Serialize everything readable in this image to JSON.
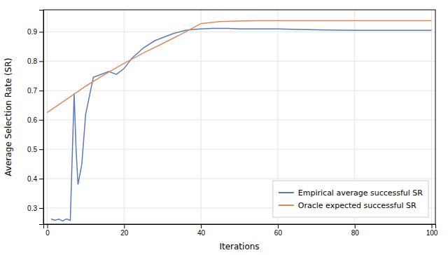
{
  "chart_data": {
    "type": "line",
    "xlabel": "Iterations",
    "ylabel": "Average Selection Rate (SR)",
    "xlim": [
      -1,
      101
    ],
    "ylim": [
      0.245,
      0.975
    ],
    "xticks": [
      0,
      20,
      40,
      60,
      80,
      100
    ],
    "yticks": [
      0.3,
      0.4,
      0.5,
      0.6,
      0.7,
      0.8,
      0.9
    ],
    "grid": true,
    "legend": "lower right",
    "series": [
      {
        "name": "Empirical average successful SR",
        "color": "#5b7ab8",
        "x": [
          1,
          2,
          3,
          4,
          5,
          6,
          7,
          7.5,
          8,
          9,
          10,
          12,
          14,
          16,
          18,
          20,
          22,
          25,
          28,
          30,
          33,
          36,
          38,
          40,
          43,
          47,
          50,
          55,
          60,
          65,
          70,
          75,
          80,
          85,
          90,
          95,
          100
        ],
        "values": [
          0.263,
          0.258,
          0.262,
          0.256,
          0.263,
          0.258,
          0.69,
          0.5,
          0.38,
          0.45,
          0.62,
          0.745,
          0.755,
          0.765,
          0.755,
          0.775,
          0.81,
          0.845,
          0.87,
          0.88,
          0.895,
          0.905,
          0.908,
          0.91,
          0.912,
          0.912,
          0.91,
          0.91,
          0.91,
          0.908,
          0.907,
          0.906,
          0.905,
          0.905,
          0.905,
          0.905,
          0.905
        ]
      },
      {
        "name": "Oracle expected successful SR",
        "color": "#e0885a",
        "x": [
          0,
          5,
          10,
          15,
          20,
          25,
          30,
          35,
          40,
          45,
          50,
          55,
          60,
          65,
          70,
          75,
          80,
          85,
          90,
          95,
          100
        ],
        "values": [
          0.625,
          0.67,
          0.715,
          0.755,
          0.793,
          0.828,
          0.86,
          0.893,
          0.928,
          0.935,
          0.937,
          0.938,
          0.938,
          0.938,
          0.938,
          0.938,
          0.938,
          0.938,
          0.938,
          0.938,
          0.938
        ]
      }
    ]
  }
}
